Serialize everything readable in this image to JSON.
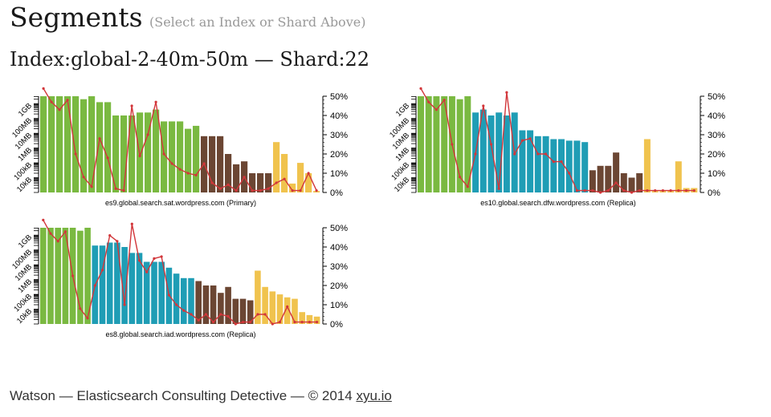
{
  "header": {
    "title": "Segments",
    "hint": "(Select an Index or Shard Above)",
    "subtitle": "Index:global-2-40m-50m — Shard:22"
  },
  "footer": {
    "text": "Watson — Elasticsearch Consulting Detective — © 2014",
    "link": "xyu.io"
  },
  "colors": {
    "green": "#7ab941",
    "teal": "#1f9db5",
    "brown": "#6b4633",
    "gold": "#f0c34e",
    "line": "#d2363a",
    "axis": "#000000"
  },
  "chart_data": [
    {
      "type": "bar",
      "title": "es9.global.search.sat.wordpress.com (Primary)",
      "yticks_left": [
        "1GB",
        "100MB",
        "10MB",
        "1MB",
        "100kB",
        "10kB"
      ],
      "yticks_right": [
        "50%",
        "40%",
        "30%",
        "20%",
        "10%",
        "0%"
      ],
      "ylim_right": [
        0,
        50
      ],
      "bars_log10_bytes": [
        9.5,
        9.5,
        9.5,
        9.5,
        9.5,
        9.3,
        9.5,
        9.1,
        9.1,
        8.2,
        8.2,
        8.2,
        8.4,
        8.4,
        8.6,
        7.8,
        7.8,
        7.8,
        7.3,
        7.5,
        6.8,
        6.8,
        6.8,
        5.6,
        4.9,
        5.1,
        4.3,
        4.3,
        4.3,
        6.4,
        5.6,
        3.6,
        5.0,
        4.3,
        3.1
      ],
      "bar_groups": [
        "green",
        "green",
        "green",
        "green",
        "green",
        "green",
        "green",
        "green",
        "green",
        "green",
        "green",
        "green",
        "green",
        "green",
        "green",
        "green",
        "green",
        "green",
        "green",
        "green",
        "brown",
        "brown",
        "brown",
        "brown",
        "brown",
        "brown",
        "brown",
        "brown",
        "brown",
        "gold",
        "gold",
        "gold",
        "gold",
        "gold",
        "gold"
      ],
      "line_percent": [
        54,
        47,
        43,
        48,
        20,
        8,
        3,
        28,
        18,
        2,
        1,
        45,
        19,
        30,
        47,
        20,
        15,
        12,
        10,
        9,
        15,
        5,
        2,
        4,
        1,
        8,
        1,
        1,
        2,
        5,
        7,
        1,
        1,
        10,
        1
      ]
    },
    {
      "type": "bar",
      "title": "es10.global.search.dfw.wordpress.com (Replica)",
      "yticks_left": [
        "1GB",
        "100MB",
        "10MB",
        "1MB",
        "100kB",
        "10kB"
      ],
      "yticks_right": [
        "50%",
        "40%",
        "30%",
        "20%",
        "10%",
        "0%"
      ],
      "ylim_right": [
        0,
        50
      ],
      "bars_log10_bytes": [
        9.5,
        9.5,
        9.5,
        9.5,
        9.5,
        9.3,
        9.5,
        8.4,
        8.6,
        8.2,
        8.4,
        8.2,
        8.4,
        7.2,
        7.2,
        6.8,
        6.8,
        6.6,
        6.6,
        6.5,
        6.5,
        6.4,
        4.5,
        4.8,
        4.8,
        5.7,
        4.3,
        4.0,
        4.3,
        6.6,
        3.1,
        3.1,
        3.1,
        5.1,
        3.3,
        3.3
      ],
      "bar_groups": [
        "green",
        "green",
        "green",
        "green",
        "green",
        "green",
        "green",
        "teal",
        "teal",
        "teal",
        "teal",
        "teal",
        "teal",
        "teal",
        "teal",
        "teal",
        "teal",
        "teal",
        "teal",
        "teal",
        "teal",
        "teal",
        "brown",
        "brown",
        "brown",
        "brown",
        "brown",
        "brown",
        "brown",
        "gold",
        "gold",
        "gold",
        "gold",
        "gold",
        "gold",
        "gold"
      ],
      "line_percent": [
        54,
        47,
        43,
        48,
        25,
        8,
        3,
        20,
        45,
        25,
        2,
        52,
        20,
        27,
        28,
        20,
        20,
        16,
        16,
        10,
        1,
        1,
        1,
        0,
        1,
        5,
        1,
        0,
        1,
        1,
        1,
        1,
        1,
        1,
        1,
        1
      ]
    },
    {
      "type": "bar",
      "title": "es8.global.search.iad.wordpress.com (Replica)",
      "yticks_left": [
        "1GB",
        "100MB",
        "10MB",
        "1MB",
        "100kB",
        "10kB"
      ],
      "yticks_right": [
        "50%",
        "40%",
        "30%",
        "20%",
        "10%",
        "0%"
      ],
      "ylim_right": [
        0,
        50
      ],
      "bars_log10_bytes": [
        9.5,
        9.5,
        9.5,
        9.5,
        9.5,
        9.3,
        9.5,
        8.3,
        8.3,
        8.5,
        8.5,
        8.2,
        7.8,
        7.8,
        7.2,
        7.2,
        7.2,
        6.8,
        6.4,
        6.1,
        6.1,
        5.9,
        5.6,
        5.6,
        5.1,
        5.5,
        4.7,
        4.7,
        4.6,
        6.6,
        5.5,
        5.2,
        5.0,
        4.8,
        4.7,
        3.8,
        3.6,
        3.5
      ],
      "bar_groups": [
        "green",
        "green",
        "green",
        "green",
        "green",
        "green",
        "green",
        "teal",
        "teal",
        "teal",
        "teal",
        "teal",
        "teal",
        "teal",
        "teal",
        "teal",
        "teal",
        "teal",
        "teal",
        "teal",
        "teal",
        "brown",
        "brown",
        "brown",
        "brown",
        "brown",
        "brown",
        "brown",
        "brown",
        "gold",
        "gold",
        "gold",
        "gold",
        "gold",
        "gold",
        "gold",
        "gold",
        "gold"
      ],
      "line_percent": [
        54,
        47,
        43,
        48,
        25,
        8,
        3,
        20,
        28,
        46,
        43,
        10,
        52,
        33,
        27,
        34,
        35,
        15,
        10,
        7,
        5,
        2,
        5,
        1,
        5,
        4,
        0,
        1,
        1,
        5,
        5,
        0,
        1,
        9,
        1,
        1,
        1,
        1
      ]
    }
  ]
}
